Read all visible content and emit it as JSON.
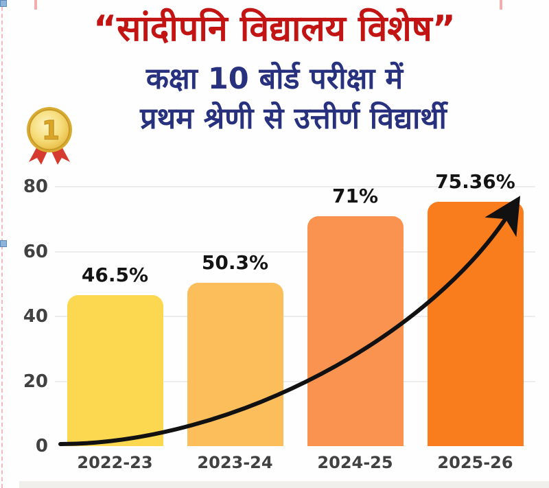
{
  "page": {
    "background_color": "#fefefe",
    "bottom_strip_color": "#f1efeb"
  },
  "header": {
    "title": "“सांदीपनि विद्यालय विशेष”",
    "title_color": "#c31414",
    "subtitle_line1": "कक्षा 10 बोर्ड परीक्षा में",
    "subtitle_line2": "प्रथम श्रेणी से उत्तीर्ण विद्यार्थी",
    "subtitle_color": "#28317d",
    "medal_icon": "gold-medal-first-place",
    "medal_number": "1"
  },
  "chart_data": {
    "type": "bar",
    "title": "कक्षा 10 बोर्ड परीक्षा में प्रथम श्रेणी से उत्तीर्ण विद्यार्थी",
    "categories": [
      "2022-23",
      "2023-24",
      "2024-25",
      "2025-26"
    ],
    "values": [
      46.5,
      50.3,
      71,
      75.36
    ],
    "value_labels": [
      "46.5%",
      "50.3%",
      "71%",
      "75.36%"
    ],
    "bar_colors": [
      "#fbd84f",
      "#fcbd5b",
      "#fb9350",
      "#f97c1d"
    ],
    "xlabel": "",
    "ylabel": "",
    "ylim": [
      0,
      80
    ],
    "yticks": [
      0,
      20,
      40,
      60,
      80
    ],
    "grid": true,
    "gridline_color": "#ececec",
    "legend": "none",
    "trend_arrow_color": "#111111",
    "tick_label_color": "#414141",
    "value_label_color": "#141414"
  },
  "editor_artifacts": {
    "selection_handle_color": "#8fb4dc",
    "dashed_border_color": "#f3b9bd"
  }
}
